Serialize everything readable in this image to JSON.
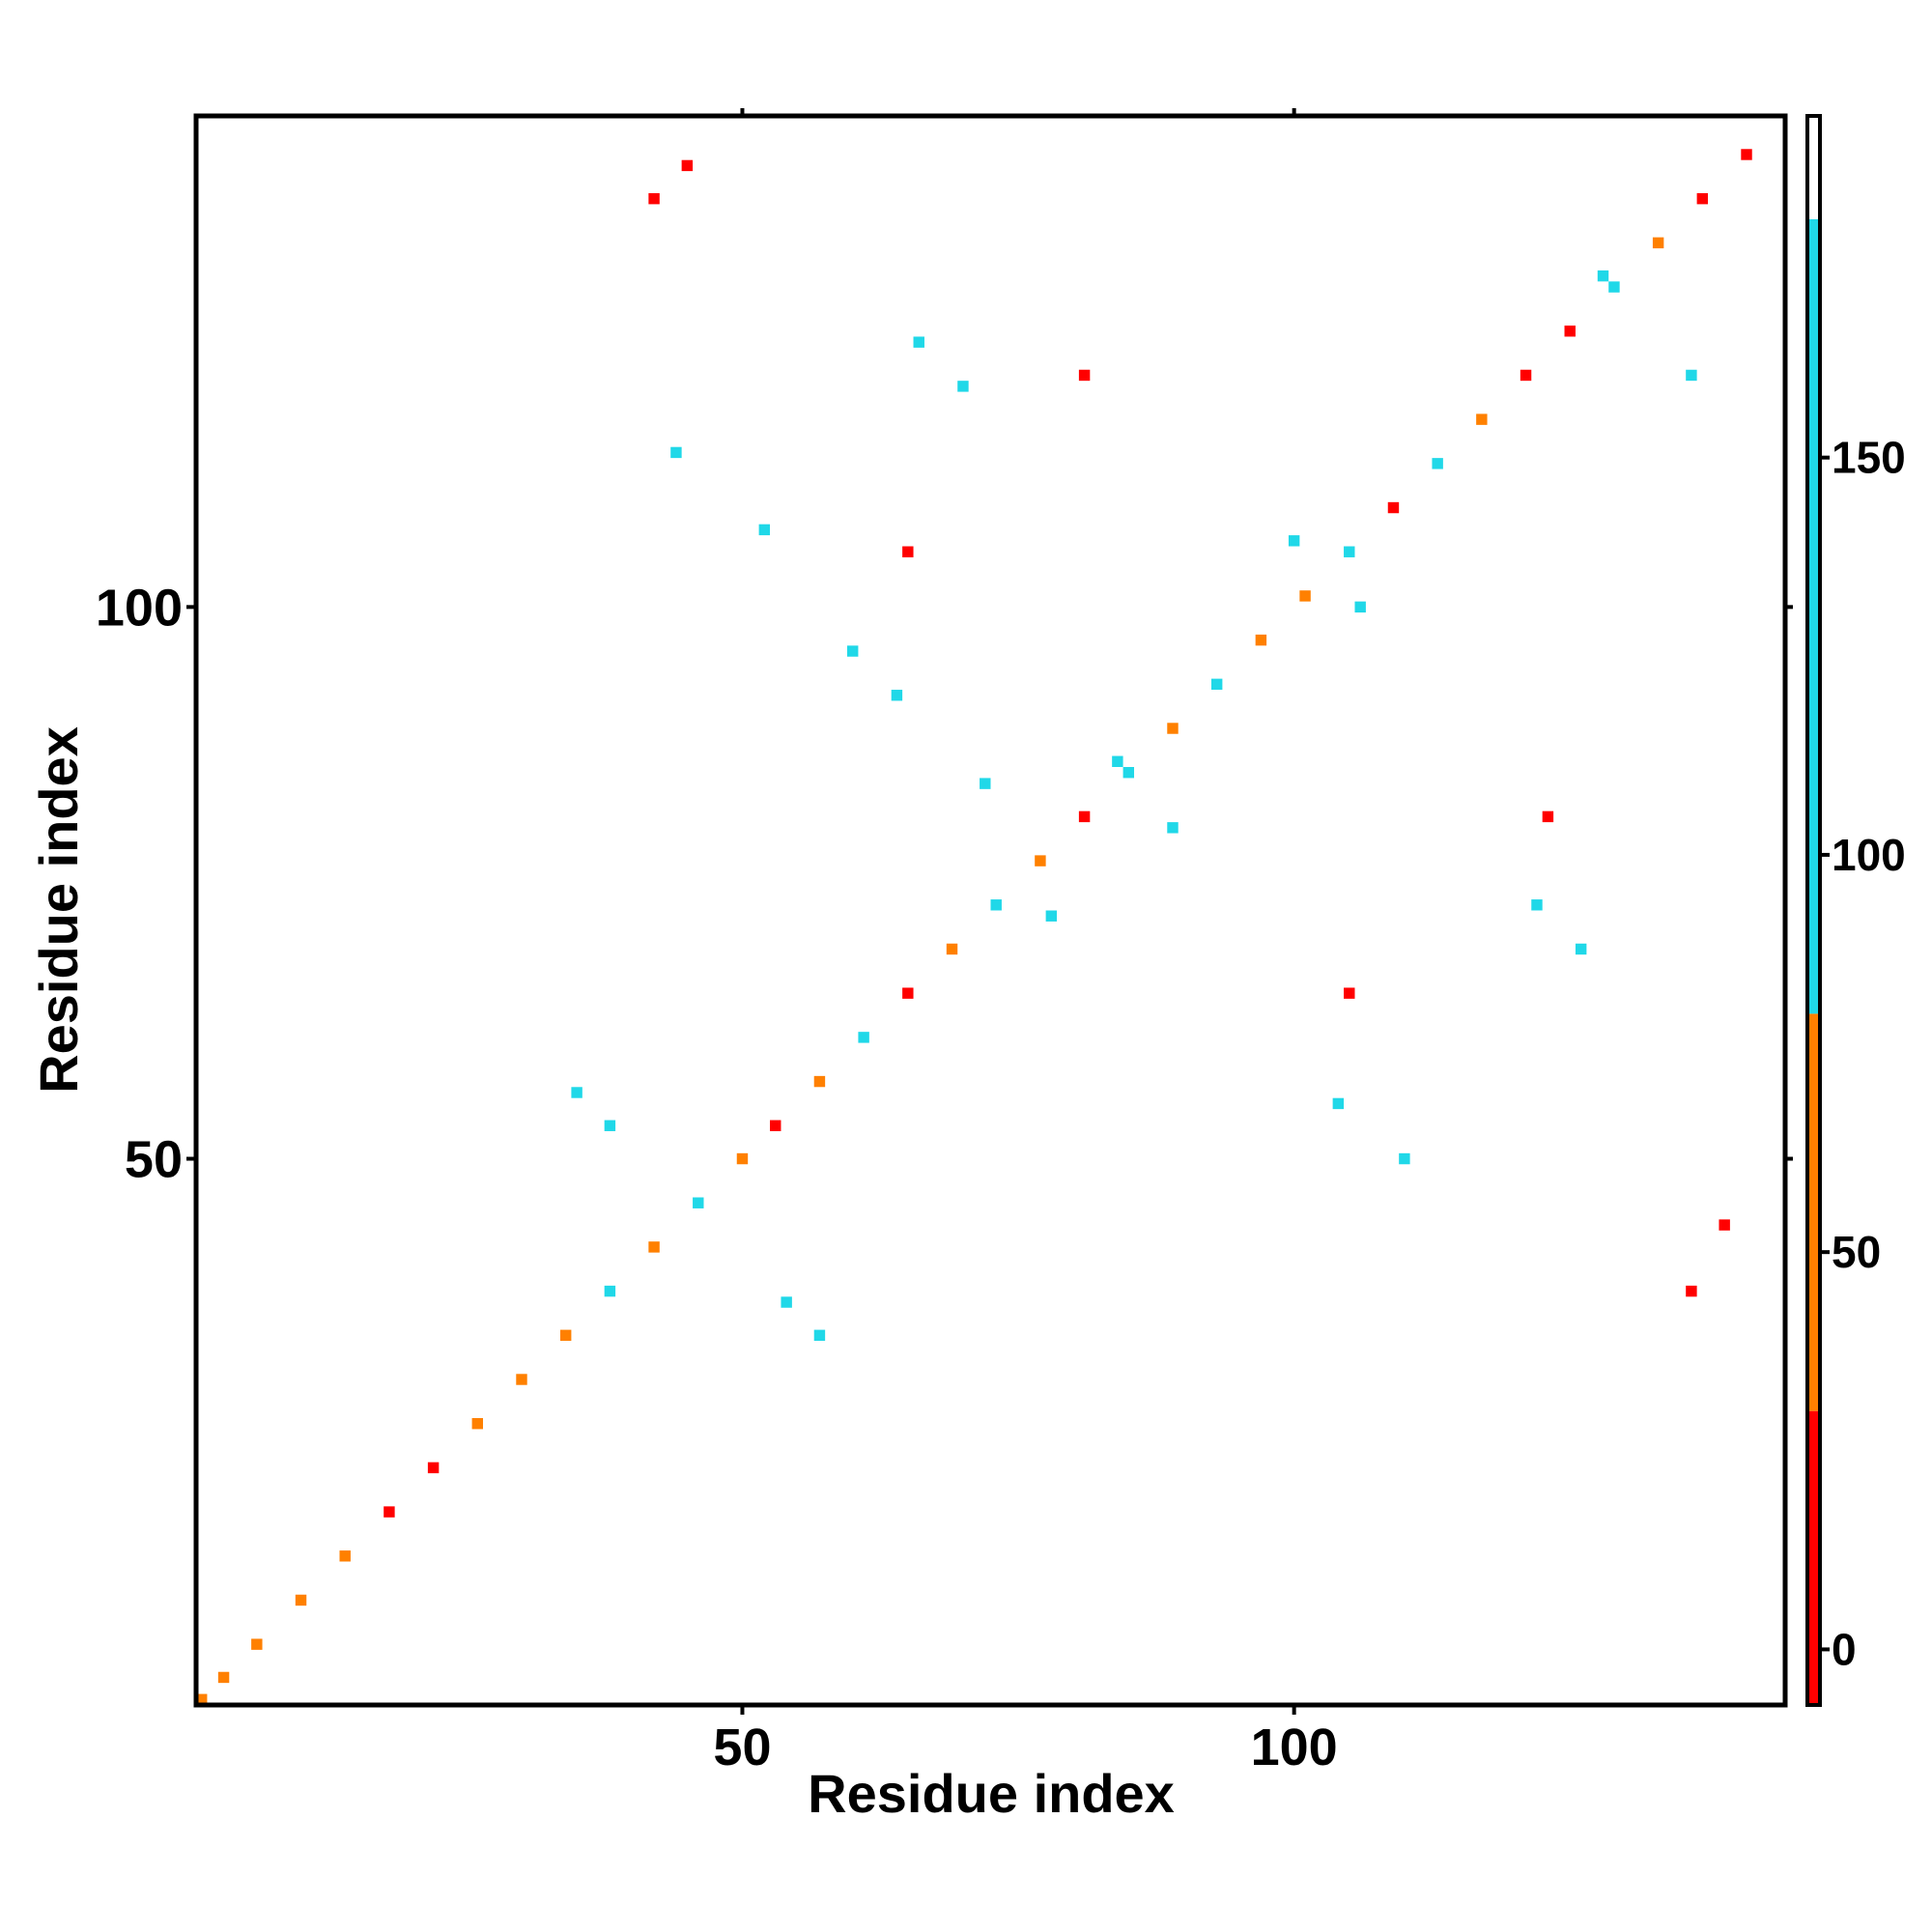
{
  "chart_data": {
    "type": "heatmap",
    "title": "",
    "xlabel": "Residue index",
    "ylabel": "Residue index",
    "x_ticks": [
      50,
      100
    ],
    "y_ticks": [
      50,
      100
    ],
    "xlim": [
      0.5,
      144.5
    ],
    "ylim": [
      0.5,
      144.5
    ],
    "colorbar": {
      "ticks": [
        0,
        50,
        100,
        150
      ],
      "range": [
        -7,
        193
      ],
      "colors": [
        {
          "from": -7,
          "to": 30,
          "color": "#ff0000"
        },
        {
          "from": 30,
          "to": 80,
          "color": "#ff8000"
        },
        {
          "from": 80,
          "to": 180,
          "color": "#20d8e8"
        },
        {
          "from": 180,
          "to": 193,
          "color": "#ffffff"
        }
      ]
    },
    "contacts": [
      {
        "x": 1,
        "y": 1,
        "value": 40
      },
      {
        "x": 3,
        "y": 3,
        "value": 40
      },
      {
        "x": 6,
        "y": 6,
        "value": 40
      },
      {
        "x": 10,
        "y": 10,
        "value": 60
      },
      {
        "x": 14,
        "y": 14,
        "value": 40
      },
      {
        "x": 18,
        "y": 18,
        "value": 20
      },
      {
        "x": 22,
        "y": 22,
        "value": 20
      },
      {
        "x": 26,
        "y": 26,
        "value": 60
      },
      {
        "x": 30,
        "y": 30,
        "value": 60
      },
      {
        "x": 34,
        "y": 34,
        "value": 40
      },
      {
        "x": 38,
        "y": 38,
        "value": 90
      },
      {
        "x": 42,
        "y": 42,
        "value": 40
      },
      {
        "x": 46,
        "y": 46,
        "value": 90
      },
      {
        "x": 50,
        "y": 50,
        "value": 40
      },
      {
        "x": 53,
        "y": 53,
        "value": 10
      },
      {
        "x": 57,
        "y": 57,
        "value": 40
      },
      {
        "x": 61,
        "y": 61,
        "value": 90
      },
      {
        "x": 65,
        "y": 65,
        "value": 10
      },
      {
        "x": 69,
        "y": 69,
        "value": 60
      },
      {
        "x": 73,
        "y": 73,
        "value": 130
      },
      {
        "x": 77,
        "y": 77,
        "value": 40
      },
      {
        "x": 81,
        "y": 81,
        "value": 10
      },
      {
        "x": 85,
        "y": 85,
        "value": 130
      },
      {
        "x": 89,
        "y": 89,
        "value": 40
      },
      {
        "x": 93,
        "y": 93,
        "value": 90
      },
      {
        "x": 97,
        "y": 97,
        "value": 60
      },
      {
        "x": 101,
        "y": 101,
        "value": 40
      },
      {
        "x": 105,
        "y": 105,
        "value": 130
      },
      {
        "x": 109,
        "y": 109,
        "value": 10
      },
      {
        "x": 113,
        "y": 113,
        "value": 90
      },
      {
        "x": 117,
        "y": 117,
        "value": 60
      },
      {
        "x": 121,
        "y": 121,
        "value": 10
      },
      {
        "x": 125,
        "y": 125,
        "value": 10
      },
      {
        "x": 129,
        "y": 129,
        "value": 130
      },
      {
        "x": 133,
        "y": 133,
        "value": 40
      },
      {
        "x": 137,
        "y": 137,
        "value": 10
      },
      {
        "x": 141,
        "y": 141,
        "value": 10
      },
      {
        "x": 60,
        "y": 96,
        "value": 150
      },
      {
        "x": 64,
        "y": 92,
        "value": 150
      },
      {
        "x": 72,
        "y": 84,
        "value": 150
      },
      {
        "x": 78,
        "y": 72,
        "value": 150
      },
      {
        "x": 84,
        "y": 86,
        "value": 150
      },
      {
        "x": 89,
        "y": 80,
        "value": 150
      },
      {
        "x": 100,
        "y": 106,
        "value": 150
      },
      {
        "x": 106,
        "y": 100,
        "value": 150
      },
      {
        "x": 122,
        "y": 73,
        "value": 150
      },
      {
        "x": 126,
        "y": 69,
        "value": 150
      },
      {
        "x": 104,
        "y": 55,
        "value": 150
      },
      {
        "x": 110,
        "y": 50,
        "value": 150
      },
      {
        "x": 128,
        "y": 130,
        "value": 150
      },
      {
        "x": 136,
        "y": 121,
        "value": 150
      },
      {
        "x": 44,
        "y": 114,
        "value": 150
      },
      {
        "x": 52,
        "y": 107,
        "value": 150
      },
      {
        "x": 66,
        "y": 124,
        "value": 150
      },
      {
        "x": 70,
        "y": 120,
        "value": 150
      },
      {
        "x": 35,
        "y": 56,
        "value": 150
      },
      {
        "x": 38,
        "y": 53,
        "value": 150
      },
      {
        "x": 54,
        "y": 37,
        "value": 150
      },
      {
        "x": 57,
        "y": 34,
        "value": 150
      },
      {
        "x": 45,
        "y": 140,
        "value": 10
      },
      {
        "x": 42,
        "y": 137,
        "value": 10
      },
      {
        "x": 139,
        "y": 44,
        "value": 10
      },
      {
        "x": 136,
        "y": 38,
        "value": 10
      },
      {
        "x": 65,
        "y": 105,
        "value": 10
      },
      {
        "x": 81,
        "y": 121,
        "value": 10
      },
      {
        "x": 123,
        "y": 81,
        "value": 10
      },
      {
        "x": 105,
        "y": 65,
        "value": 10
      }
    ]
  }
}
